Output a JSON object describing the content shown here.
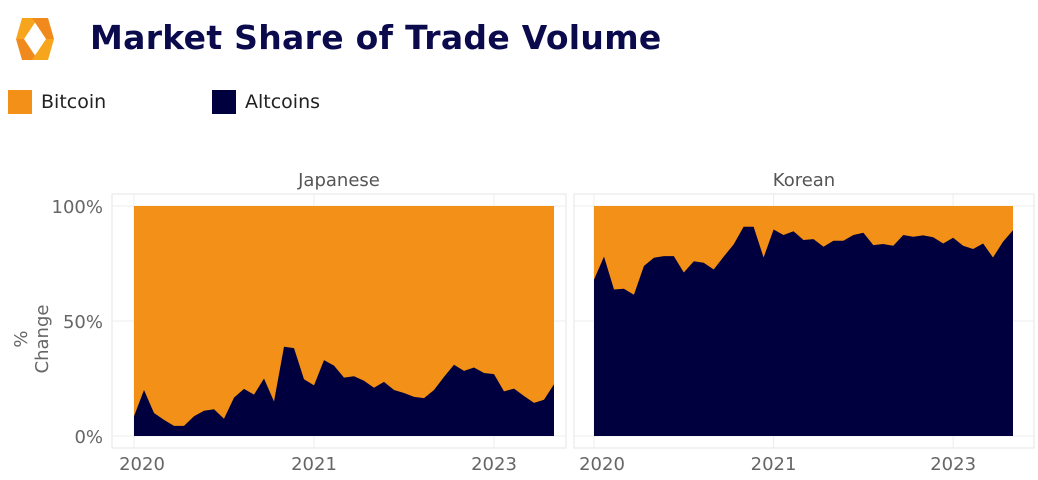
{
  "header": {
    "title": "Market Share of Trade Volume",
    "logo": "exchange-logo"
  },
  "legend": [
    {
      "label": "Bitcoin",
      "color": "#F29017"
    },
    {
      "label": "Altcoins",
      "color": "#00003F"
    }
  ],
  "chart_data": {
    "type": "area",
    "stacked": "percent",
    "title": "Market Share of Trade Volume",
    "ylabel": "% Change",
    "ylim": [
      0,
      100
    ],
    "yticks": [
      "0%",
      "50%",
      "100%"
    ],
    "grid": true,
    "legend_placement": "top-left",
    "panels": [
      {
        "name": "Japanese",
        "xticks": [
          {
            "index": 0,
            "label": "2020"
          },
          {
            "index": 18,
            "label": "2021"
          },
          {
            "index": 36,
            "label": "2023"
          }
        ],
        "series": [
          {
            "name": "Altcoins",
            "values": [
              8.6,
              20,
              10,
              7,
              4.4,
              4.4,
              8.6,
              11,
              11.6,
              7.5,
              16.7,
              20.5,
              18,
              25,
              15,
              38.8,
              38.2,
              24.7,
              22,
              33,
              30.6,
              25.4,
              26,
              24,
              21,
              23.5,
              20,
              18.7,
              17,
              16.5,
              20,
              25.7,
              31,
              28.3,
              29.8,
              27.4,
              26.9,
              19.4,
              20.6,
              17.4,
              14.4,
              15.8,
              22.5
            ]
          },
          {
            "name": "Bitcoin",
            "values": "remainder to 100%"
          }
        ]
      },
      {
        "name": "Korean",
        "xticks": [
          {
            "index": 0,
            "label": "2020"
          },
          {
            "index": 18,
            "label": "2021"
          },
          {
            "index": 36,
            "label": "2023"
          }
        ],
        "series": [
          {
            "name": "Altcoins",
            "values": [
              68,
              78,
              63.7,
              64,
              61.4,
              73.9,
              77.5,
              78.2,
              78.2,
              71.1,
              76,
              75.3,
              72.4,
              78,
              83.3,
              91,
              91,
              77.6,
              89.8,
              87.4,
              89,
              85.2,
              85.6,
              82.3,
              84.9,
              84.9,
              87.4,
              88.4,
              83,
              83.5,
              82.7,
              87.4,
              86.6,
              87.2,
              86.4,
              83.7,
              86.2,
              82.7,
              81.3,
              83.7,
              77.6,
              84.5,
              89.5
            ]
          },
          {
            "name": "Bitcoin",
            "values": "remainder to 100%"
          }
        ]
      }
    ]
  }
}
